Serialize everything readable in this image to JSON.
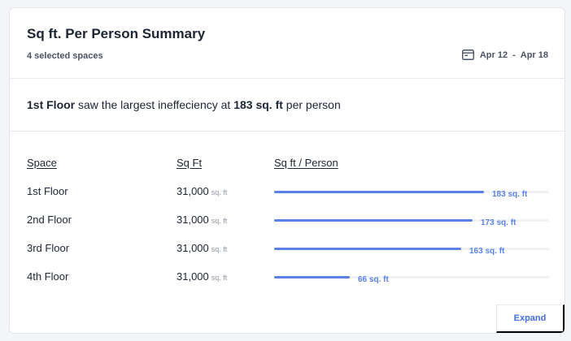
{
  "summary": {
    "title": "Sq ft. Per Person Summary",
    "subtitle": "4 selected spaces",
    "date_start": "Apr 12",
    "date_sep": "-",
    "date_end": "Apr 18"
  },
  "insight": {
    "space": "1st Floor",
    "text_mid": " saw the largest ineffeciency at ",
    "value": "183 sq. ft",
    "text_end": " per person"
  },
  "columns": {
    "space": "Space",
    "sqft": "Sq Ft",
    "per_person": "Sq ft / Person"
  },
  "rows": [
    {
      "name": "1st Floor",
      "sqft": "31,000",
      "unit": "sq. ft",
      "per_person_label": "183 sq. ft",
      "per_person_value": 183
    },
    {
      "name": "2nd Floor",
      "sqft": "31,000",
      "unit": "sq. ft",
      "per_person_label": "173 sq. ft",
      "per_person_value": 173
    },
    {
      "name": "3rd Floor",
      "sqft": "31,000",
      "unit": "sq. ft",
      "per_person_label": "163 sq. ft",
      "per_person_value": 163
    },
    {
      "name": "4th Floor",
      "sqft": "31,000",
      "unit": "sq. ft",
      "per_person_label": "66 sq. ft",
      "per_person_value": 66
    }
  ],
  "bar_max": 240,
  "colors": {
    "accent": "#5a82e8",
    "track": "#f0f2f5",
    "link": "#3f6fe0"
  },
  "icons": {
    "date": "calendar-icon"
  },
  "footer": {
    "expand_label": "Expand"
  }
}
